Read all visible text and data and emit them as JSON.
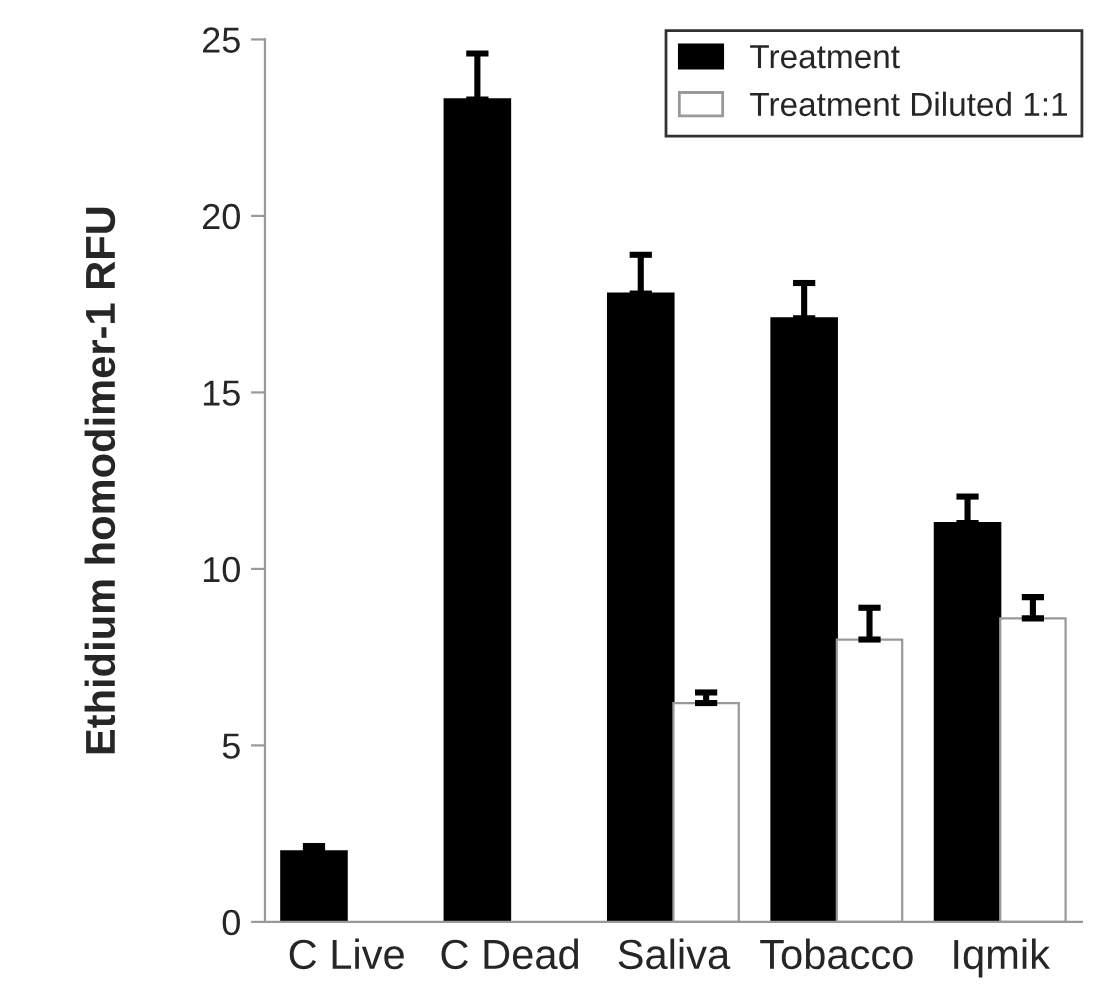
{
  "chart_data": {
    "type": "bar",
    "ylabel": "Ethidium homodimer-1 RFU",
    "categories": [
      "C Live",
      "C Dead",
      "Saliva",
      "Tobacco",
      "Iqmik"
    ],
    "series": [
      {
        "name": "Treatment",
        "color": "#000000",
        "values": [
          2.0,
          23.3,
          17.8,
          17.1,
          11.3
        ],
        "errors": [
          [
            2.0,
            2.15
          ],
          [
            23.3,
            24.6
          ],
          [
            17.8,
            18.9
          ],
          [
            17.1,
            18.1
          ],
          [
            11.3,
            12.05
          ]
        ]
      },
      {
        "name": "Treatment Diluted 1:1",
        "color": "#ffffff",
        "values": [
          null,
          null,
          6.2,
          8.0,
          8.6
        ],
        "errors": [
          null,
          null,
          [
            6.2,
            6.5
          ],
          [
            8.0,
            8.9
          ],
          [
            8.6,
            9.2
          ]
        ]
      }
    ],
    "ylim": [
      0,
      25
    ],
    "yticks": [
      0,
      5,
      10,
      15,
      20,
      25
    ],
    "grid": false,
    "legend": "top right"
  }
}
